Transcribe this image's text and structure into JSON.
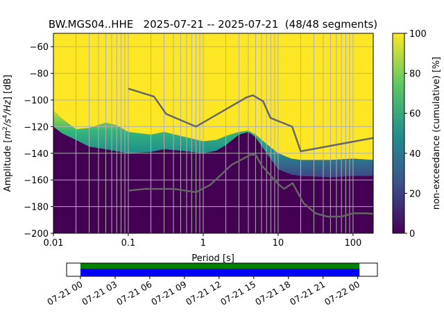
{
  "chart_data": {
    "type": "heatmap",
    "title": "BW.MGS04..HHE   2025-07-21 -- 2025-07-21  (48/48 segments)",
    "xlabel": "Period [s]",
    "ylabel_parts": {
      "prefix": "Amplitude [",
      "m": "m",
      "sup2": "2",
      "slash": "/",
      "s": "s",
      "sup4": "4",
      "hz": "/Hz",
      "suffix": "] [dB]"
    },
    "xscale": "log",
    "xlim": [
      0.01,
      186
    ],
    "ylim": [
      -200,
      -50
    ],
    "xticks": [
      {
        "v": 0.01,
        "label": "0.01"
      },
      {
        "v": 0.1,
        "label": "0.1"
      },
      {
        "v": 1,
        "label": "1"
      },
      {
        "v": 10,
        "label": "10"
      },
      {
        "v": 100,
        "label": "100"
      }
    ],
    "yticks": [
      {
        "v": -60,
        "label": "−60"
      },
      {
        "v": -80,
        "label": "−80"
      },
      {
        "v": -100,
        "label": "−100"
      },
      {
        "v": -120,
        "label": "−120"
      },
      {
        "v": -140,
        "label": "−140"
      },
      {
        "v": -160,
        "label": "−160"
      },
      {
        "v": -180,
        "label": "−180"
      },
      {
        "v": -200,
        "label": "−200"
      }
    ],
    "grid": true,
    "colors": {
      "high": "#fde725",
      "mid": "#21918c",
      "low": "#440154",
      "model_line": "#666666",
      "grid": "#b0b0b0"
    },
    "transition_upper": [
      [
        0.01,
        -108
      ],
      [
        0.013,
        -114
      ],
      [
        0.02,
        -122
      ],
      [
        0.03,
        -121
      ],
      [
        0.05,
        -117
      ],
      [
        0.07,
        -119
      ],
      [
        0.1,
        -124
      ],
      [
        0.2,
        -126
      ],
      [
        0.3,
        -124
      ],
      [
        0.5,
        -127
      ],
      [
        1,
        -131
      ],
      [
        1.5,
        -130
      ],
      [
        2,
        -127
      ],
      [
        3,
        -124
      ],
      [
        4,
        -123
      ],
      [
        5,
        -126
      ],
      [
        7,
        -133
      ],
      [
        10,
        -140
      ],
      [
        15,
        -144
      ],
      [
        20,
        -145
      ],
      [
        50,
        -145
      ],
      [
        100,
        -144
      ],
      [
        186,
        -145
      ]
    ],
    "transition_lower": [
      [
        0.01,
        -120
      ],
      [
        0.013,
        -125
      ],
      [
        0.02,
        -130
      ],
      [
        0.03,
        -135
      ],
      [
        0.05,
        -137
      ],
      [
        0.1,
        -140
      ],
      [
        0.2,
        -139
      ],
      [
        0.3,
        -137
      ],
      [
        0.5,
        -138
      ],
      [
        1,
        -140
      ],
      [
        1.5,
        -138
      ],
      [
        2,
        -134
      ],
      [
        3,
        -126
      ],
      [
        4,
        -124
      ],
      [
        5,
        -128
      ],
      [
        7,
        -140
      ],
      [
        10,
        -152
      ],
      [
        15,
        -156
      ],
      [
        20,
        -157
      ],
      [
        50,
        -158
      ],
      [
        100,
        -157
      ],
      [
        186,
        -157
      ]
    ],
    "nhnm": [
      [
        0.1,
        -91.5
      ],
      [
        0.22,
        -97.4
      ],
      [
        0.32,
        -110.5
      ],
      [
        0.8,
        -120
      ],
      [
        3.8,
        -98
      ],
      [
        4.6,
        -96.5
      ],
      [
        6.3,
        -101
      ],
      [
        7.9,
        -113.5
      ],
      [
        15.4,
        -120
      ],
      [
        20,
        -138.5
      ],
      [
        186,
        -128.5
      ]
    ],
    "nlnm": [
      [
        0.1,
        -168
      ],
      [
        0.17,
        -166.7
      ],
      [
        0.4,
        -166.7
      ],
      [
        0.8,
        -169.2
      ],
      [
        1.24,
        -163.7
      ],
      [
        2.4,
        -148.6
      ],
      [
        4.3,
        -141.1
      ],
      [
        5,
        -141.1
      ],
      [
        6,
        -149
      ],
      [
        10,
        -163
      ],
      [
        12,
        -166.7
      ],
      [
        15.6,
        -162.4
      ],
      [
        21.9,
        -177.5
      ],
      [
        31.6,
        -185
      ],
      [
        45,
        -187.5
      ],
      [
        70,
        -187.5
      ],
      [
        101,
        -185
      ],
      [
        154,
        -185
      ],
      [
        186,
        -185.5
      ]
    ],
    "colorbar": {
      "label": "non-exceedance (cumulative) [%]",
      "range": [
        0,
        100
      ],
      "ticks": [
        {
          "v": 0,
          "label": "0"
        },
        {
          "v": 20,
          "label": "20"
        },
        {
          "v": 40,
          "label": "40"
        },
        {
          "v": 60,
          "label": "60"
        },
        {
          "v": 80,
          "label": "80"
        },
        {
          "v": 100,
          "label": "100"
        }
      ]
    },
    "timeline": {
      "range_hours": [
        -1.2,
        25.7
      ],
      "coverage_hours": [
        0,
        24.15
      ],
      "colors": {
        "top": "#008000",
        "bottom": "#0000ff"
      },
      "ticks": [
        {
          "h": 0,
          "label": "07-21 00"
        },
        {
          "h": 3,
          "label": "07-21 03"
        },
        {
          "h": 6,
          "label": "07-21 06"
        },
        {
          "h": 9,
          "label": "07-21 09"
        },
        {
          "h": 12,
          "label": "07-21 12"
        },
        {
          "h": 15,
          "label": "07-21 15"
        },
        {
          "h": 18,
          "label": "07-21 18"
        },
        {
          "h": 21,
          "label": "07-21 21"
        },
        {
          "h": 24,
          "label": "07-22 00"
        }
      ]
    }
  }
}
